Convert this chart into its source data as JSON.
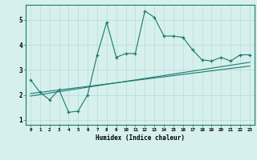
{
  "xlabel": "Humidex (Indice chaleur)",
  "ylabel": "",
  "background_color": "#d6f0ee",
  "line_color": "#1a7a6e",
  "grid_color": "#b8dbd8",
  "xlim": [
    -0.5,
    23.5
  ],
  "ylim": [
    0.8,
    5.6
  ],
  "x_ticks": [
    0,
    1,
    2,
    3,
    4,
    5,
    6,
    7,
    8,
    9,
    10,
    11,
    12,
    13,
    14,
    15,
    16,
    17,
    18,
    19,
    20,
    21,
    22,
    23
  ],
  "y_ticks": [
    1,
    2,
    3,
    4,
    5
  ],
  "series1_x": [
    0,
    1,
    2,
    3,
    4,
    5,
    6,
    7,
    8,
    9,
    10,
    11,
    12,
    13,
    14,
    15,
    16,
    17,
    18,
    19,
    20,
    21,
    22,
    23
  ],
  "series1_y": [
    2.6,
    2.1,
    1.8,
    2.2,
    1.3,
    1.35,
    2.0,
    3.6,
    4.9,
    3.5,
    3.65,
    3.65,
    5.35,
    5.1,
    4.35,
    4.35,
    4.3,
    3.8,
    3.4,
    3.35,
    3.5,
    3.35,
    3.6,
    3.6
  ],
  "series2_x": [
    0,
    23
  ],
  "series2_y": [
    2.05,
    3.15
  ],
  "series3_x": [
    0,
    23
  ],
  "series3_y": [
    1.95,
    3.3
  ]
}
